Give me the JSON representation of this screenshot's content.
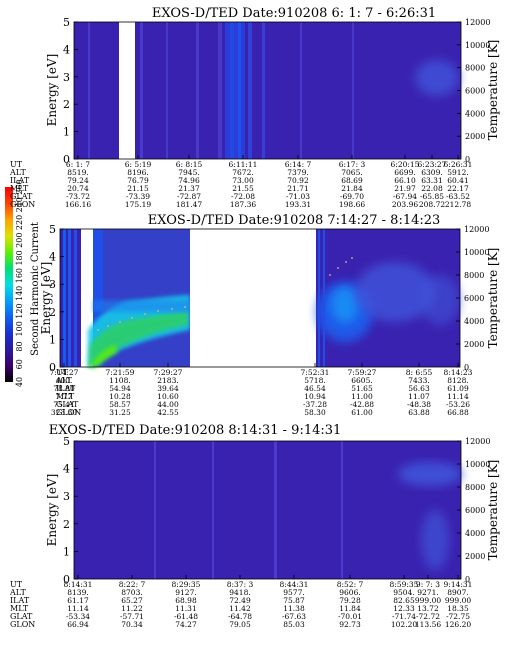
{
  "colorbar": {
    "label": "Second Harmonic Current",
    "ticks": [
      "40",
      "60",
      "80",
      "100",
      "120",
      "140",
      "160",
      "180",
      "200",
      "220",
      "240",
      "260"
    ],
    "gradient": [
      "#000000",
      "#3a006a",
      "#2a1aa0",
      "#1a2fd0",
      "#1060f0",
      "#00a0ff",
      "#00e0e0",
      "#00e070",
      "#60f000",
      "#e0e000",
      "#ffa000",
      "#ff4000",
      "#ff0000"
    ]
  },
  "colors": {
    "background": "#3a22b0",
    "texture": "#4b3ccf",
    "bright_blue": "#1f4fe6",
    "cyan": "#18c8e8",
    "green": "#2fd060",
    "temperature_marker": "#d8c070"
  },
  "chart_data": [
    {
      "type": "heatmap",
      "title": "EXOS-D/TED   Date:910208  6: 1: 7 - 6:26:31",
      "ylabel": "Energy [eV]",
      "y2label": "Temperature [K]",
      "ylim": [
        0,
        5
      ],
      "y2lim": [
        0,
        12000
      ],
      "yticks": [
        "0",
        "1",
        "2",
        "3",
        "4",
        "5"
      ],
      "y2ticks": [
        "0",
        "2000",
        "4000",
        "6000",
        "8000",
        "10000",
        "12000"
      ],
      "ephemeris": {
        "labels": [
          "UT",
          "ALT",
          "ILAT",
          "MLT",
          "GLAT",
          "GLON"
        ],
        "columns": [
          [
            "6: 1: 7",
            "8519.",
            "79.24",
            "20.74",
            "-73.72",
            "166.16"
          ],
          [
            "6: 5:19",
            "8196.",
            "76.79",
            "21.15",
            "-73.39",
            "175.19"
          ],
          [
            "6: 8:15",
            "7945.",
            "74.96",
            "21.37",
            "-72.87",
            "181.47"
          ],
          [
            "6:11:11",
            "7672.",
            "73.00",
            "21.55",
            "-72.08",
            "187.36"
          ],
          [
            "6:14: 7",
            "7379.",
            "70.92",
            "21.71",
            "-71.03",
            "193.31"
          ],
          [
            "6:17: 3",
            "7065.",
            "68.69",
            "21.84",
            "-69.70",
            "198.66"
          ],
          [
            "6:20:15",
            "6699.",
            "66.10",
            "21.97",
            "-67.94",
            "203.96"
          ],
          [
            "6:23:27",
            "6309.",
            "63.31",
            "22.08",
            "-65.85",
            "208.72"
          ],
          [
            "6:26:31",
            "5912.",
            "60.41",
            "22.17",
            "-63.52",
            "212.78"
          ]
        ]
      }
    },
    {
      "type": "heatmap",
      "title": "EXOS-D/TED   Date:910208  7:14:27 - 8:14:23",
      "ylabel": "Energy [eV]",
      "y2label": "Temperature [K]",
      "ylim": [
        0,
        5
      ],
      "y2lim": [
        0,
        12000
      ],
      "yticks": [
        "0",
        "1",
        "2",
        "3",
        "4",
        "5"
      ],
      "y2ticks": [
        "0",
        "2000",
        "4000",
        "6000",
        "8000",
        "10000",
        "12000"
      ],
      "ephemeris": {
        "labels": [
          "UT",
          "ALT",
          "ILAT",
          "MLT",
          "GLAT",
          "GLON"
        ],
        "columns": [
          [
            "7:14:27",
            "400.",
            "78.80",
            "7.77",
            "75.41",
            "323.30"
          ],
          [
            "7:21:59",
            "1108.",
            "54.94",
            "10.28",
            "58.57",
            "31.25"
          ],
          [
            "7:29:27",
            "2183.",
            "39.64",
            "10.60",
            "44.00",
            "42.55"
          ],
          [
            "7:52:31",
            "5718.",
            "46.54",
            "10.94",
            "-37.28",
            "58.30"
          ],
          [
            "7:59:27",
            "6605.",
            "51.65",
            "11.00",
            "-42.88",
            "61.00"
          ],
          [
            "8: 6:55",
            "7433.",
            "56.63",
            "11.07",
            "-48.38",
            "63.88"
          ],
          [
            "8:14:23",
            "8128.",
            "61.09",
            "11.14",
            "-53.26",
            "66.88"
          ]
        ]
      }
    },
    {
      "type": "heatmap",
      "title": "EXOS-D/TED   Date:910208  8:14:31 - 9:14:31",
      "ylabel": "Energy [eV]",
      "y2label": "Temperature [K]",
      "ylim": [
        0,
        5
      ],
      "y2lim": [
        0,
        12000
      ],
      "yticks": [
        "0",
        "1",
        "2",
        "3",
        "4",
        "5"
      ],
      "y2ticks": [
        "0",
        "2000",
        "4000",
        "6000",
        "8000",
        "10000",
        "12000"
      ],
      "ephemeris": {
        "labels": [
          "UT",
          "ALT",
          "ILAT",
          "MLT",
          "GLAT",
          "GLON"
        ],
        "columns": [
          [
            "8:14:31",
            "8139.",
            "61.17",
            "11.14",
            "-53.34",
            "66.94"
          ],
          [
            "8:22: 7",
            "8703.",
            "65.27",
            "11.22",
            "-57.71",
            "70.34"
          ],
          [
            "8:29:35",
            "9127.",
            "68.98",
            "11.31",
            "-61.48",
            "74.27"
          ],
          [
            "8:37: 3",
            "9418.",
            "72.49",
            "11.42",
            "-64.78",
            "79.05"
          ],
          [
            "8:44:31",
            "9577.",
            "75.87",
            "11.38",
            "-67.63",
            "85.03"
          ],
          [
            "8:52: 7",
            "9606.",
            "79.28",
            "11.84",
            "-70.01",
            "92.73"
          ],
          [
            "8:59:35",
            "9504.",
            "82.65",
            "12.33",
            "-71.74",
            "102.20"
          ],
          [
            "9: 7: 3",
            "9271.",
            "999.00",
            "13.72",
            "-72.72",
            "113.56"
          ],
          [
            "9:14:31",
            "8907.",
            "999.00",
            "18.35",
            "-72.75",
            "126.20"
          ]
        ]
      }
    }
  ]
}
